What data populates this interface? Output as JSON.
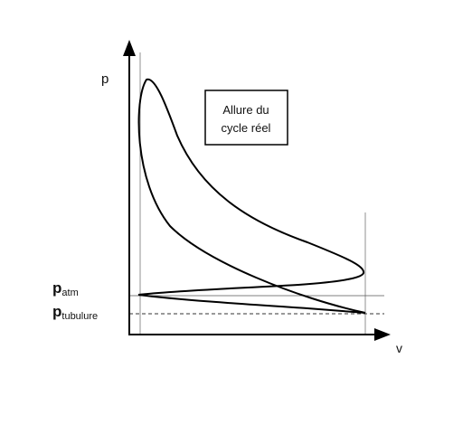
{
  "axes": {
    "y_label": "p",
    "x_label": "v"
  },
  "box": {
    "lines": [
      "Allure du",
      "cycle réel"
    ]
  },
  "levels": [
    {
      "symbol": "p",
      "subscript": "atm"
    },
    {
      "symbol": "p",
      "subscript": "tubulure"
    }
  ]
}
